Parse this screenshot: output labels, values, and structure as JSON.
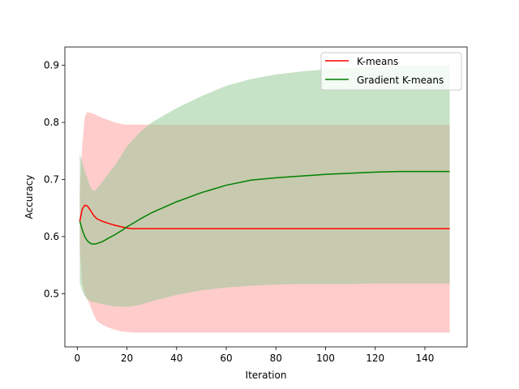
{
  "chart_data": {
    "type": "line",
    "title": "",
    "xlabel": "Iteration",
    "ylabel": "Accuracy",
    "xlim": [
      -5,
      157
    ],
    "ylim": [
      0.407,
      0.932
    ],
    "xticks": [
      0,
      20,
      40,
      60,
      80,
      100,
      120,
      140
    ],
    "yticks": [
      0.5,
      0.6,
      0.7,
      0.8,
      0.9
    ],
    "xtick_labels": [
      "0",
      "20",
      "40",
      "60",
      "80",
      "100",
      "120",
      "140"
    ],
    "ytick_labels": [
      "0.5",
      "0.6",
      "0.7",
      "0.8",
      "0.9"
    ],
    "grid": false,
    "legend_position": "top-right",
    "series": [
      {
        "name": "K-means",
        "color": "#ff0000",
        "fill_color": "#ff9999",
        "x": [
          1,
          2,
          3,
          4,
          5,
          6,
          7,
          8,
          10,
          12,
          15,
          18,
          20,
          22,
          25,
          30,
          40,
          60,
          80,
          100,
          120,
          150
        ],
        "values": [
          0.627,
          0.648,
          0.655,
          0.654,
          0.648,
          0.641,
          0.635,
          0.631,
          0.627,
          0.624,
          0.62,
          0.617,
          0.615,
          0.614,
          0.614,
          0.614,
          0.614,
          0.614,
          0.614,
          0.614,
          0.614,
          0.614
        ],
        "band_upper": [
          0.68,
          0.76,
          0.81,
          0.818,
          0.817,
          0.816,
          0.814,
          0.812,
          0.808,
          0.805,
          0.8,
          0.797,
          0.796,
          0.796,
          0.796,
          0.796,
          0.796,
          0.796,
          0.796,
          0.796,
          0.796,
          0.796
        ],
        "band_lower": [
          0.575,
          0.52,
          0.5,
          0.49,
          0.482,
          0.47,
          0.46,
          0.452,
          0.446,
          0.442,
          0.437,
          0.434,
          0.433,
          0.432,
          0.432,
          0.432,
          0.432,
          0.432,
          0.432,
          0.432,
          0.432,
          0.432
        ]
      },
      {
        "name": "Gradient K-means",
        "color": "#008000",
        "fill_color": "#8fc88f",
        "x": [
          1,
          2,
          3,
          4,
          5,
          6,
          7,
          8,
          10,
          12,
          15,
          18,
          20,
          25,
          30,
          40,
          50,
          60,
          70,
          80,
          90,
          100,
          110,
          120,
          130,
          140,
          150
        ],
        "values": [
          0.627,
          0.612,
          0.6,
          0.593,
          0.589,
          0.587,
          0.587,
          0.588,
          0.591,
          0.596,
          0.603,
          0.611,
          0.617,
          0.63,
          0.642,
          0.661,
          0.677,
          0.69,
          0.699,
          0.703,
          0.706,
          0.709,
          0.711,
          0.713,
          0.714,
          0.714,
          0.714
        ],
        "band_upper": [
          0.745,
          0.73,
          0.715,
          0.703,
          0.69,
          0.682,
          0.68,
          0.685,
          0.695,
          0.707,
          0.724,
          0.744,
          0.758,
          0.782,
          0.8,
          0.825,
          0.846,
          0.864,
          0.876,
          0.884,
          0.889,
          0.893,
          0.896,
          0.898,
          0.9,
          0.9,
          0.9
        ],
        "band_lower": [
          0.52,
          0.505,
          0.496,
          0.491,
          0.488,
          0.486,
          0.485,
          0.484,
          0.482,
          0.48,
          0.478,
          0.477,
          0.477,
          0.48,
          0.487,
          0.498,
          0.506,
          0.511,
          0.514,
          0.516,
          0.517,
          0.517,
          0.517,
          0.518,
          0.518,
          0.518,
          0.518
        ]
      }
    ]
  }
}
